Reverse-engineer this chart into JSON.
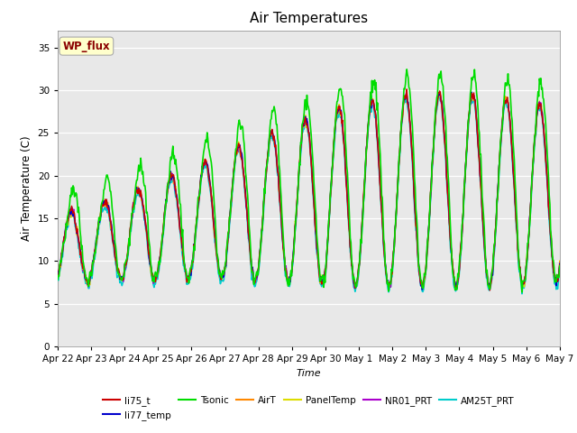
{
  "title": "Air Temperatures",
  "ylabel": "Air Temperature (C)",
  "xlabel": "Time",
  "ylim": [
    0,
    37
  ],
  "yticks": [
    0,
    5,
    10,
    15,
    20,
    25,
    30,
    35
  ],
  "x_labels": [
    "Apr 22",
    "Apr 23",
    "Apr 24",
    "Apr 25",
    "Apr 26",
    "Apr 27",
    "Apr 28",
    "Apr 29",
    "Apr 30",
    "May 1",
    "May 2",
    "May 3",
    "May 4",
    "May 5",
    "May 6",
    "May 7"
  ],
  "fig_bg": "#ffffff",
  "plot_bg": "#e8e8e8",
  "series": {
    "li75_t": {
      "color": "#cc0000",
      "lw": 1.0,
      "zorder": 4
    },
    "li77_temp": {
      "color": "#0000cc",
      "lw": 1.0,
      "zorder": 4
    },
    "Tsonic": {
      "color": "#00dd00",
      "lw": 1.2,
      "zorder": 5
    },
    "AirT": {
      "color": "#ff8800",
      "lw": 1.0,
      "zorder": 4
    },
    "PanelTemp": {
      "color": "#dddd00",
      "lw": 1.0,
      "zorder": 4
    },
    "NR01_PRT": {
      "color": "#aa00cc",
      "lw": 1.0,
      "zorder": 4
    },
    "AM25T_PRT": {
      "color": "#00cccc",
      "lw": 1.2,
      "zorder": 3
    }
  },
  "annotation_text": "WP_flux",
  "annotation_color": "#8b0000",
  "annotation_bg": "#ffffcc",
  "annotation_border": "#aaaaaa"
}
